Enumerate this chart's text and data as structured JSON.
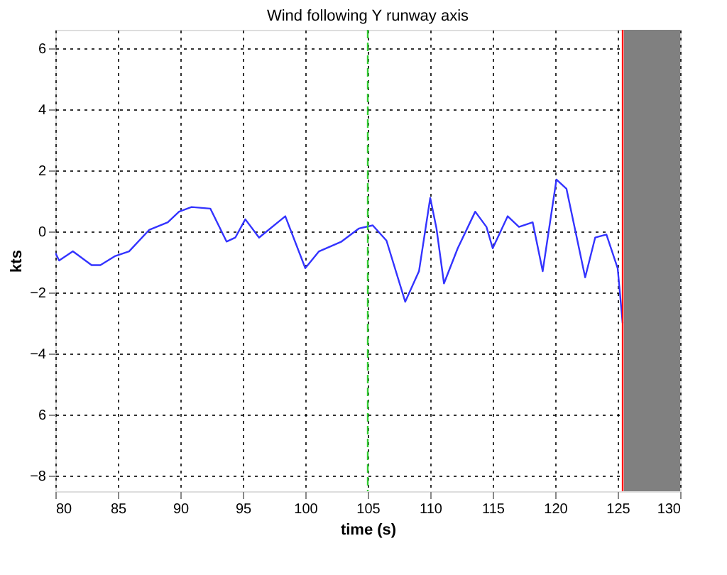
{
  "chart_data": {
    "type": "line",
    "title": "Wind following Y runway axis",
    "xlabel": "time (s)",
    "ylabel": "kts",
    "xlim": [
      80,
      130
    ],
    "xticks": [
      80,
      85,
      90,
      95,
      100,
      105,
      110,
      115,
      120,
      125,
      130
    ],
    "ylim": [
      -8.5,
      6.6
    ],
    "yticks": [
      6,
      4,
      2,
      0,
      -2,
      -4,
      {
        "value": -6,
        "label": "6"
      },
      -8
    ],
    "grid": true,
    "line_style": "solid",
    "marker": "none",
    "x": [
      80,
      80.3,
      81.4,
      82.9,
      83.6,
      84.8,
      85.9,
      87.5,
      89.0,
      89.9,
      90.9,
      92.4,
      93.7,
      94.4,
      95.2,
      96.3,
      98.4,
      100.0,
      101.1,
      102.9,
      104.3,
      105.4,
      106.5,
      108.0,
      109.1,
      110.0,
      110.5,
      111.1,
      112.2,
      113.6,
      114.5,
      115.0,
      116.2,
      117.1,
      118.2,
      119.0,
      120.1,
      120.9,
      122.4,
      123.2,
      124.1,
      125.0,
      125.4
    ],
    "series": [
      {
        "color": "#3333ff",
        "values": [
          -0.7,
          -0.95,
          -0.65,
          -1.1,
          -1.1,
          -0.8,
          -0.65,
          0.05,
          0.3,
          0.65,
          0.8,
          0.75,
          -0.33,
          -0.2,
          0.4,
          -0.2,
          0.5,
          -1.2,
          -0.65,
          -0.33,
          0.1,
          0.2,
          -0.3,
          -2.3,
          -1.3,
          1.1,
          0.1,
          -1.7,
          -0.55,
          0.65,
          0.15,
          -0.55,
          0.5,
          0.15,
          0.3,
          -1.3,
          1.7,
          1.4,
          -1.5,
          -0.2,
          -0.1,
          -1.2,
          -3.0
        ]
      }
    ],
    "ref_lines": [
      {
        "axis": "x",
        "value": 105,
        "color": "#33cc33",
        "line_style": "dashed"
      },
      {
        "axis": "x",
        "value": 125.4,
        "color": "#ff0000",
        "line_style": "solid"
      }
    ],
    "bands": [
      {
        "axis": "x",
        "from": 125.5,
        "to": 130,
        "color": "#808080"
      }
    ]
  }
}
